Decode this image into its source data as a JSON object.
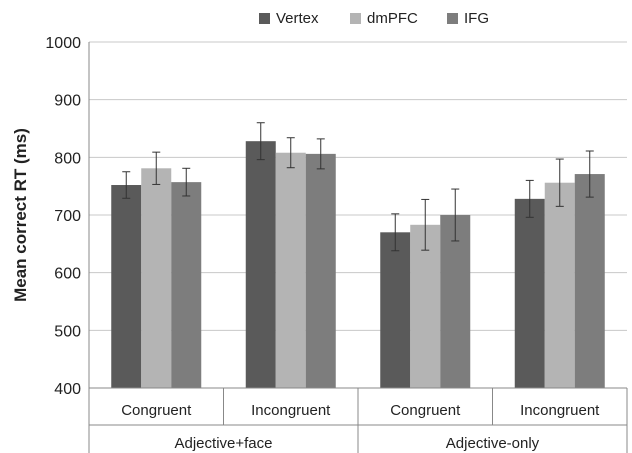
{
  "chart_data": {
    "type": "bar",
    "ylabel": "Mean correct RT (ms)",
    "xlabel": "",
    "ylim": [
      400,
      1000
    ],
    "yticks": [
      400,
      500,
      600,
      700,
      800,
      900,
      1000
    ],
    "grid": true,
    "legend_position": "top",
    "groups": [
      {
        "label": "Adjective+face",
        "categories": [
          "Congruent",
          "Incongruent"
        ]
      },
      {
        "label": "Adjective-only",
        "categories": [
          "Congruent",
          "Incongruent"
        ]
      }
    ],
    "categories": [
      "Congruent",
      "Incongruent",
      "Congruent",
      "Incongruent"
    ],
    "series": [
      {
        "name": "Vertex",
        "color": "#5a5a5a",
        "values": [
          752,
          828,
          670,
          728
        ],
        "error": [
          23,
          32,
          32,
          32
        ]
      },
      {
        "name": "dmPFC",
        "color": "#b4b4b4",
        "values": [
          781,
          808,
          683,
          756
        ],
        "error": [
          28,
          26,
          44,
          41
        ]
      },
      {
        "name": "IFG",
        "color": "#7d7d7d",
        "values": [
          757,
          806,
          700,
          771
        ],
        "error": [
          24,
          26,
          45,
          40
        ]
      }
    ]
  }
}
